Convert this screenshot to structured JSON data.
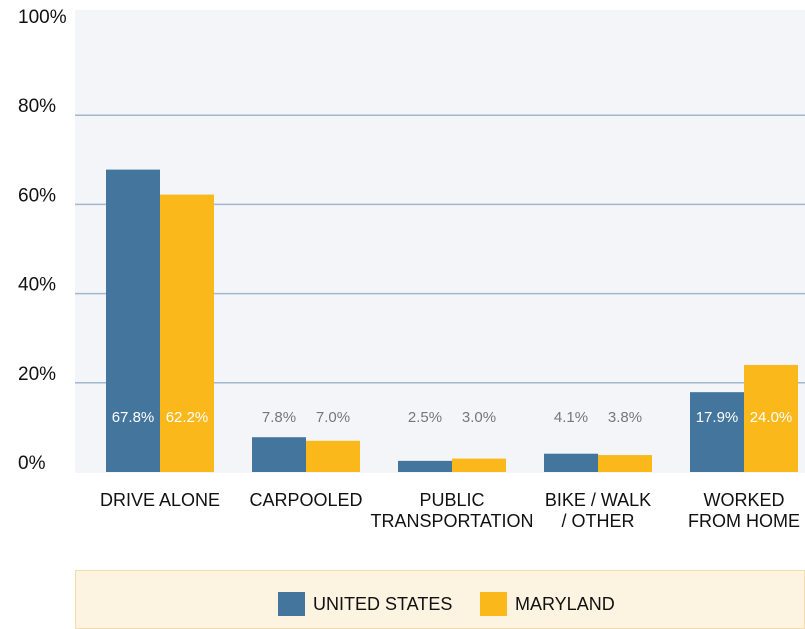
{
  "chart_data": {
    "type": "bar",
    "categories": [
      "DRIVE ALONE",
      "CARPOOLED",
      "PUBLIC\nTRANSPORTATION",
      "BIKE / WALK\n/ OTHER",
      "WORKED\nFROM HOME"
    ],
    "series": [
      {
        "name": "UNITED STATES",
        "color": "#44759d",
        "values": [
          67.8,
          7.8,
          2.5,
          4.1,
          17.9
        ],
        "value_labels": [
          "67.8%",
          "7.8%",
          "2.5%",
          "4.1%",
          "17.9%"
        ]
      },
      {
        "name": "MARYLAND",
        "color": "#fbb81a",
        "values": [
          62.2,
          7.0,
          3.0,
          3.8,
          24.0
        ],
        "value_labels": [
          "62.2%",
          "7.0%",
          "3.0%",
          "3.8%",
          "24.0%"
        ]
      }
    ],
    "ylim": [
      0,
      100
    ],
    "yticks": [
      {
        "value": 0,
        "label": "0%"
      },
      {
        "value": 20,
        "label": "20%"
      },
      {
        "value": 40,
        "label": "40%"
      },
      {
        "value": 60,
        "label": "60%"
      },
      {
        "value": 80,
        "label": "80%"
      },
      {
        "value": 100,
        "label": "100%"
      }
    ],
    "grid": true,
    "legend": "bottom"
  }
}
